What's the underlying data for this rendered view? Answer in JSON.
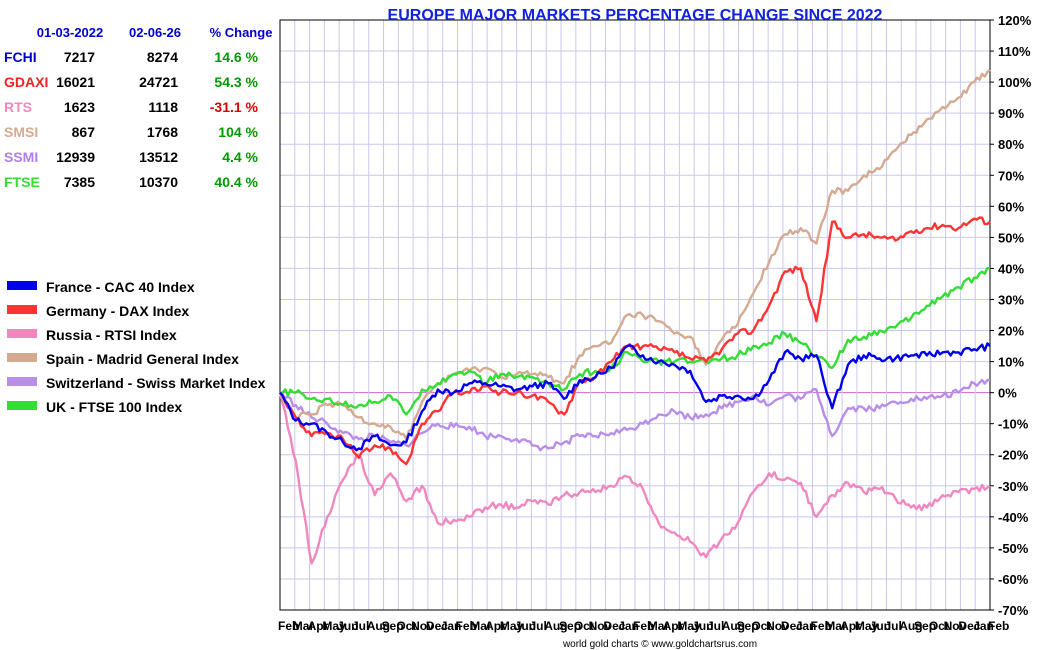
{
  "chart_data": {
    "type": "line",
    "title": "EUROPE MAJOR MARKETS PERCENTAGE CHANGE SINCE 2022",
    "footer": "world gold charts © www.goldchartsrus.com",
    "ylim": [
      -70,
      120
    ],
    "yticks": [
      120,
      110,
      100,
      90,
      80,
      70,
      60,
      50,
      40,
      30,
      20,
      10,
      0,
      -10,
      -20,
      -30,
      -40,
      -50,
      -60,
      -70
    ],
    "ytick_labels": [
      "120%",
      "110%",
      "100%",
      "90%",
      "80%",
      "70%",
      "60%",
      "50%",
      "40%",
      "30%",
      "20%",
      "10%",
      "0%",
      "-10%",
      "-20%",
      "-30%",
      "-40%",
      "-50%",
      "-60%",
      "-70%"
    ],
    "x_labels": [
      "Feb",
      "Mar",
      "Apr",
      "May",
      "Jun",
      "Jul",
      "Aug",
      "Sep",
      "Oct",
      "Nov",
      "Dec",
      "Jan",
      "Feb",
      "Mar",
      "Apr",
      "May",
      "Jun",
      "Jul",
      "Aug",
      "Sep",
      "Oct",
      "Nov",
      "Dec",
      "Jan",
      "Feb",
      "Mar",
      "Apr",
      "May",
      "Jun",
      "Jul",
      "Aug",
      "Sep",
      "Oct",
      "Nov",
      "Dec",
      "Jan",
      "Feb",
      "Mar",
      "Apr",
      "May",
      "Jun",
      "Jul",
      "Aug",
      "Sep",
      "Oct",
      "Nov",
      "Dec",
      "Jan",
      "Feb"
    ],
    "table": {
      "headers": [
        "",
        "01-03-2022",
        "02-06-26",
        "% Change"
      ],
      "rows": [
        {
          "symbol": "FCHI",
          "start": "7217",
          "end": "8274",
          "change": "14.6 %",
          "color": "#0000cc",
          "change_color": "#009900"
        },
        {
          "symbol": "GDAXI",
          "start": "16021",
          "end": "24721",
          "change": "54.3 %",
          "color": "#ee2222",
          "change_color": "#009900"
        },
        {
          "symbol": "RTS",
          "start": "1623",
          "end": "1118",
          "change": "-31.1 %",
          "color": "#f088c0",
          "change_color": "#dd0000"
        },
        {
          "symbol": "SMSI",
          "start": "867",
          "end": "1768",
          "change": "104 %",
          "color": "#d4aa90",
          "change_color": "#009900"
        },
        {
          "symbol": "SSMI",
          "start": "12939",
          "end": "13512",
          "change": "4.4 %",
          "color": "#b080e8",
          "change_color": "#009900"
        },
        {
          "symbol": "FTSE",
          "start": "7385",
          "end": "10370",
          "change": "40.4 %",
          "color": "#33dd33",
          "change_color": "#009900"
        }
      ]
    },
    "legend": [
      {
        "name": "France - CAC 40 Index",
        "color": "#0000ee"
      },
      {
        "name": "Germany - DAX Index",
        "color": "#ff3333"
      },
      {
        "name": "Russia - RTSI Index",
        "color": "#f088c0"
      },
      {
        "name": "Spain - Madrid General Index",
        "color": "#d4aa90"
      },
      {
        "name": "Switzerland - Swiss Market Index",
        "color": "#b88ee8"
      },
      {
        "name": "UK - FTSE 100 Index",
        "color": "#33dd33"
      }
    ],
    "series": [
      {
        "name": "France - CAC 40 Index",
        "color": "#0000ee",
        "values": [
          0,
          -9,
          -10,
          -13,
          -16,
          -18,
          -14,
          -17,
          -16,
          -6,
          1,
          0,
          3,
          3,
          2,
          1,
          2,
          3,
          -2,
          4,
          5,
          8,
          15,
          12,
          10,
          9,
          7,
          -3,
          -1,
          -1,
          -2,
          4,
          13,
          11,
          12,
          -5,
          9,
          12,
          11,
          11,
          12,
          12,
          13,
          13,
          14,
          15
        ]
      },
      {
        "name": "Germany - DAX Index",
        "color": "#ff3333",
        "values": [
          0,
          -8,
          -14,
          -13,
          -15,
          -21,
          -17,
          -18,
          -23,
          -10,
          -6,
          0,
          0,
          2,
          0,
          0,
          -1,
          -3,
          -7,
          4,
          5,
          10,
          15,
          15,
          14,
          13,
          11,
          10,
          14,
          19,
          20,
          28,
          39,
          40,
          23,
          55,
          50,
          51,
          50,
          49,
          52,
          53,
          54,
          53,
          56,
          55
        ]
      },
      {
        "name": "Russia - RTSI Index",
        "color": "#f088c0",
        "values": [
          0,
          -22,
          -55,
          -40,
          -28,
          -20,
          -33,
          -26,
          -35,
          -30,
          -42,
          -41,
          -40,
          -37,
          -36,
          -37,
          -35,
          -36,
          -33,
          -32,
          -32,
          -30,
          -27,
          -31,
          -42,
          -45,
          -48,
          -53,
          -47,
          -42,
          -32,
          -26,
          -28,
          -29,
          -40,
          -33,
          -29,
          -32,
          -31,
          -34,
          -37,
          -37,
          -33,
          -32,
          -31,
          -30
        ]
      },
      {
        "name": "Spain - Madrid General Index",
        "color": "#d4aa90",
        "values": [
          0,
          -8,
          -7,
          -4,
          -4,
          -8,
          -10,
          -11,
          -15,
          -3,
          3,
          6,
          7,
          8,
          5,
          6,
          6,
          5,
          3,
          12,
          15,
          16,
          25,
          25,
          23,
          19,
          18,
          9,
          17,
          22,
          32,
          42,
          51,
          53,
          48,
          65,
          65,
          70,
          72,
          78,
          83,
          88,
          92,
          95,
          100,
          104
        ]
      },
      {
        "name": "Switzerland - Swiss Market Index",
        "color": "#b88ee8",
        "values": [
          0,
          -4,
          -8,
          -10,
          -13,
          -15,
          -14,
          -16,
          -17,
          -13,
          -10,
          -11,
          -11,
          -14,
          -14,
          -15,
          -17,
          -18,
          -16,
          -14,
          -14,
          -13,
          -12,
          -10,
          -7,
          -6,
          -8,
          -7,
          -5,
          -3,
          -1,
          -4,
          -1,
          -2,
          1,
          -14,
          -5,
          -5,
          -5,
          -3,
          -2,
          -2,
          -1,
          0,
          3,
          4
        ]
      },
      {
        "name": "UK - FTSE 100 Index",
        "color": "#33dd33",
        "values": [
          0,
          0,
          -2,
          -2,
          -4,
          -4,
          -3,
          -1,
          -7,
          1,
          3,
          6,
          7,
          3,
          6,
          5,
          5,
          3,
          1,
          6,
          7,
          8,
          13,
          10,
          10,
          10,
          10,
          10,
          11,
          12,
          15,
          16,
          19,
          16,
          12,
          8,
          17,
          18,
          20,
          21,
          24,
          28,
          31,
          34,
          37,
          40
        ]
      }
    ]
  }
}
